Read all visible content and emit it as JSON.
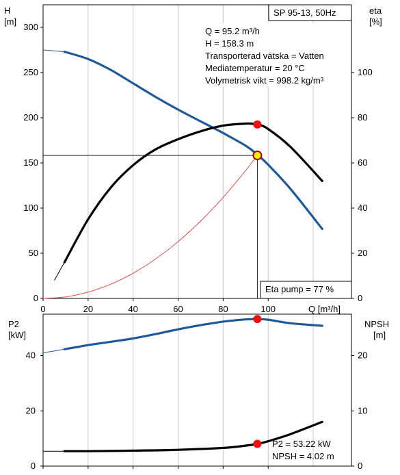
{
  "chart_data": [
    {
      "type": "line",
      "title": "SP 95-13, 50Hz",
      "xlabel": "Q [m³/h]",
      "ylabel_left": [
        "H",
        "[m]"
      ],
      "ylabel_right": [
        "eta",
        "[%]"
      ],
      "xlim": [
        0,
        137
      ],
      "ylim_left": [
        0,
        325
      ],
      "ylim_right": [
        0,
        130
      ],
      "xticks": [
        0,
        20,
        40,
        60,
        80,
        100
      ],
      "xtick_labels": [
        "0",
        "20",
        "40",
        "60",
        "80",
        "100"
      ],
      "xaxis_end_label": "Q [m³/h]",
      "yticks_left": [
        0,
        50,
        100,
        150,
        200,
        250,
        300
      ],
      "yticks_right": [
        0,
        20,
        40,
        60,
        80,
        100
      ],
      "grid": "vertical",
      "info_lines": [
        "Q = 95.2 m³/h",
        "H = 158.3 m",
        "Transporterad vätska = Vatten",
        "Mediatemperatur = 20 °C",
        "Volymetrisk vikt = 998.2 kg/m³"
      ],
      "eta_label": "Eta pump = 77 %",
      "duty_point": {
        "q": 95.2,
        "h": 158.3
      },
      "eta_point": {
        "q": 95.2,
        "eta": 77
      },
      "series": [
        {
          "name": "H",
          "axis": "left",
          "color": "#1f5a96",
          "extrapolated": [
            [
              0,
              275
            ],
            [
              9.5,
              273
            ]
          ],
          "values": [
            [
              9.5,
              273
            ],
            [
              20,
              265
            ],
            [
              30,
              253
            ],
            [
              40,
              238
            ],
            [
              50,
              223
            ],
            [
              60,
              209
            ],
            [
              70,
              196
            ],
            [
              80,
              183
            ],
            [
              90,
              169
            ],
            [
              95.2,
              159
            ],
            [
              100,
              148
            ],
            [
              110,
              121
            ],
            [
              124,
              77
            ]
          ]
        },
        {
          "name": "eta",
          "axis": "right",
          "color": "#000000",
          "extrapolated": [
            [
              5,
              8
            ],
            [
              9.5,
              16
            ]
          ],
          "values": [
            [
              9.5,
              16
            ],
            [
              20,
              35
            ],
            [
              30,
              49
            ],
            [
              40,
              59
            ],
            [
              50,
              66
            ],
            [
              60,
              70.5
            ],
            [
              70,
              74
            ],
            [
              80,
              76.5
            ],
            [
              90,
              77.4
            ],
            [
              95.2,
              77
            ],
            [
              100,
              75
            ],
            [
              110,
              67
            ],
            [
              124,
              52
            ]
          ]
        },
        {
          "name": "system",
          "axis": "left",
          "color": "#e04040",
          "values": [
            [
              0,
              0
            ],
            [
              10,
              1.7
            ],
            [
              20,
              7
            ],
            [
              30,
              15.7
            ],
            [
              40,
              27.9
            ],
            [
              50,
              43.7
            ],
            [
              60,
              62.9
            ],
            [
              70,
              85.6
            ],
            [
              80,
              111.8
            ],
            [
              90,
              141.5
            ],
            [
              95.2,
              158.3
            ]
          ]
        }
      ]
    },
    {
      "type": "line",
      "xlim": [
        0,
        137
      ],
      "ylabel_left": [
        "P2",
        "[kW]"
      ],
      "ylabel_right": [
        "NPSH",
        "[m]"
      ],
      "ylim_left": [
        0,
        55
      ],
      "ylim_right": [
        0,
        27.5
      ],
      "yticks_left": [
        0,
        20,
        40
      ],
      "yticks_right": [
        0,
        10,
        20
      ],
      "grid": "vertical",
      "labels": [
        "P2 = 53.22 kW",
        "NPSH = 4.02 m"
      ],
      "p2_point": {
        "q": 95.2,
        "p2": 53.22
      },
      "npsh_point": {
        "q": 95.2,
        "npsh": 4.02
      },
      "series": [
        {
          "name": "P2",
          "axis": "left",
          "color": "#1f5a96",
          "extrapolated": [
            [
              0,
              41
            ],
            [
              9.5,
              42.3
            ]
          ],
          "values": [
            [
              9.5,
              42.3
            ],
            [
              20,
              43.8
            ],
            [
              30,
              45
            ],
            [
              40,
              46.2
            ],
            [
              50,
              47.8
            ],
            [
              60,
              49.5
            ],
            [
              70,
              51
            ],
            [
              80,
              52.3
            ],
            [
              90,
              53.1
            ],
            [
              95.2,
              53.2
            ],
            [
              100,
              53
            ],
            [
              110,
              51.7
            ],
            [
              124,
              50.8
            ]
          ]
        },
        {
          "name": "NPSH",
          "axis": "right",
          "color": "#000000",
          "extrapolated": [
            [
              0,
              2.7
            ],
            [
              9.5,
              2.7
            ]
          ],
          "values": [
            [
              9.5,
              2.7
            ],
            [
              20,
              2.7
            ],
            [
              40,
              2.8
            ],
            [
              60,
              2.95
            ],
            [
              80,
              3.3
            ],
            [
              90,
              3.7
            ],
            [
              95.2,
              4.02
            ],
            [
              100,
              4.5
            ],
            [
              110,
              5.8
            ],
            [
              124,
              8
            ]
          ]
        }
      ]
    }
  ]
}
